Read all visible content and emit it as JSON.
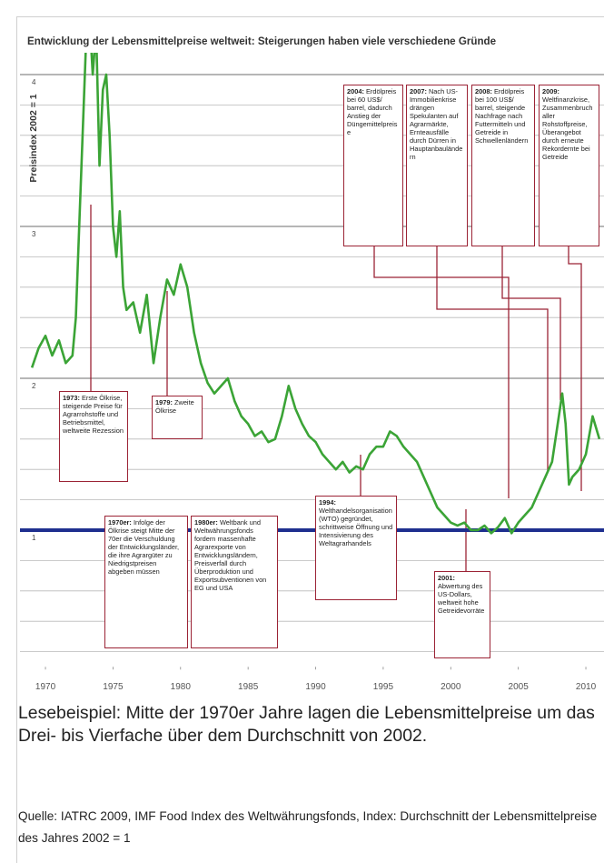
{
  "chart_data": {
    "type": "line",
    "title": "Entwicklung der Lebensmittelpreise weltweit: Steigerungen haben viele verschiedene Gründe",
    "y_label": "Preisindex 2002 = 1",
    "x": [
      1969,
      1969.5,
      1970,
      1970.5,
      1971,
      1971.5,
      1972,
      1972.25,
      1972.5,
      1972.75,
      1973,
      1973.25,
      1973.5,
      1973.75,
      1974,
      1974.25,
      1974.5,
      1974.75,
      1975,
      1975.25,
      1975.5,
      1975.75,
      1976,
      1976.5,
      1977,
      1977.5,
      1978,
      1978.5,
      1979,
      1979.5,
      1980,
      1980.5,
      1981,
      1981.5,
      1982,
      1982.5,
      1983,
      1983.5,
      1984,
      1984.5,
      1985,
      1985.5,
      1986,
      1986.5,
      1987,
      1987.5,
      1988,
      1988.5,
      1989,
      1989.5,
      1990,
      1990.5,
      1991,
      1991.5,
      1992,
      1992.5,
      1993,
      1993.5,
      1994,
      1994.5,
      1995,
      1995.5,
      1996,
      1996.5,
      1997,
      1997.5,
      1998,
      1998.5,
      1999,
      1999.5,
      2000,
      2000.5,
      2001,
      2001.5,
      2002,
      2002.5,
      2003,
      2003.5,
      2004,
      2004.5,
      2005,
      2005.5,
      2006,
      2006.5,
      2007,
      2007.5,
      2008,
      2008.25,
      2008.5,
      2008.75,
      2009,
      2009.5,
      2010,
      2010.5,
      2011
    ],
    "series": [
      {
        "name": "Preisindex",
        "color": "#3ba436",
        "values": [
          2.07,
          2.2,
          2.28,
          2.15,
          2.25,
          2.1,
          2.15,
          2.4,
          3.0,
          3.6,
          4.2,
          4.4,
          4.0,
          4.3,
          3.4,
          3.9,
          4.0,
          3.6,
          3.0,
          2.8,
          3.1,
          2.6,
          2.45,
          2.5,
          2.3,
          2.55,
          2.1,
          2.4,
          2.65,
          2.55,
          2.75,
          2.6,
          2.3,
          2.1,
          1.97,
          1.9,
          1.95,
          2.0,
          1.85,
          1.75,
          1.7,
          1.62,
          1.65,
          1.58,
          1.6,
          1.75,
          1.95,
          1.8,
          1.7,
          1.62,
          1.58,
          1.5,
          1.45,
          1.4,
          1.45,
          1.38,
          1.42,
          1.4,
          1.5,
          1.55,
          1.55,
          1.65,
          1.62,
          1.55,
          1.5,
          1.45,
          1.35,
          1.25,
          1.15,
          1.1,
          1.05,
          1.03,
          1.05,
          1.0,
          1.0,
          1.03,
          0.98,
          1.02,
          1.08,
          0.98,
          1.05,
          1.1,
          1.15,
          1.25,
          1.35,
          1.45,
          1.75,
          1.9,
          1.7,
          1.3,
          1.35,
          1.4,
          1.5,
          1.75,
          1.6
        ]
      }
    ],
    "xlim": [
      1968.7,
      2011.1
    ],
    "xticks": [
      1970,
      1975,
      1980,
      1985,
      1990,
      1995,
      2000,
      2005,
      2010
    ],
    "ylim": [
      0.1,
      4.1
    ],
    "yticks": [
      1,
      2,
      3,
      4
    ],
    "minor_yticks": [
      0.2,
      0.4,
      0.6,
      0.8,
      1.2,
      1.4,
      1.6,
      1.8,
      2.2,
      2.4,
      2.6,
      2.8,
      3.2,
      3.4,
      3.6,
      3.8
    ],
    "grid": true,
    "reference_line": {
      "value": 1,
      "color": "#1f2f8f"
    },
    "annotations": [
      {
        "label": "2004:",
        "text": "Erdölpreis bei 60 US$/ barrel, dadurch Anstieg der Düngemittelpreise"
      },
      {
        "label": "2007:",
        "text": "Nach US-Immobilienkrise drängen Spekulanten auf Agrarmärkte, Ernteausfälle durch Dürren in Hauptanbauländern"
      },
      {
        "label": "2008:",
        "text": "Erdölpreis bei 100 US$/ barrel, steigende Nachfrage nach Futtermitteln und Getreide in Schwellenländern"
      },
      {
        "label": "2009:",
        "text": "Weltfinanzkrise, Zusammenbruch aller Rohstoffpreise, Überangebot durch erneute Rekordernte bei Getreide"
      },
      {
        "label": "1973:",
        "text": "Erste Ölkrise, steigende Preise für Agrarrohstoffe und Betriebsmittel, weltweite Rezession"
      },
      {
        "label": "1979:",
        "text": "Zweite Ölkrise"
      },
      {
        "label": "1970er:",
        "text": "Infolge der Ölkrise steigt Mitte der 70er die Verschuldung der Entwicklungsländer, die ihre Agrargüter zu Niedrigstpreisen abgeben müssen"
      },
      {
        "label": "1980er:",
        "text": "Weltbank und Weltwährungsfonds fordern massenhafte Agrarexporte von Entwicklungsländern, Preisverfall durch Überproduktion und Exportsubventionen von EG und USA"
      },
      {
        "label": "1994:",
        "text": "Welthandelsorganisation (WTO) gegründet, schrittweise Öffnung und Intensivierung des Weltagrarhandels"
      },
      {
        "label": "2001:",
        "text": "Abwertung des US-Dollars, weltweit hohe Getreidevorräte"
      }
    ]
  },
  "caption": "Lesebeispiel: Mitte der 1970er Jahre lagen die Lebensmittelpreise um das Drei- bis Vierfache über dem Durchschnitt von 2002.",
  "source": "Quelle: IATRC 2009, IMF Food Index des Weltwährungsfonds, Index: Durchschnitt der Lebensmittelpreise des Jahres 2002 = 1"
}
